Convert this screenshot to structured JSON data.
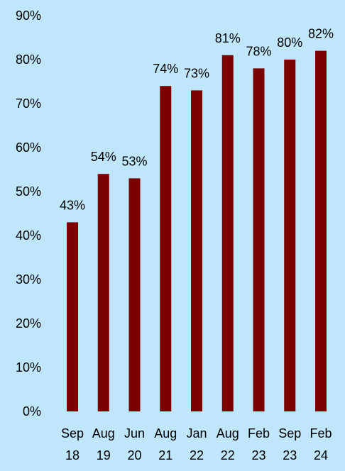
{
  "chart_data": {
    "type": "bar",
    "title": "",
    "xlabel": "",
    "ylabel": "",
    "ylim": [
      0,
      90
    ],
    "y_ticks": [
      0,
      10,
      20,
      30,
      40,
      50,
      60,
      70,
      80,
      90
    ],
    "y_tick_labels": [
      "0%",
      "10%",
      "20%",
      "30%",
      "40%",
      "50%",
      "60%",
      "70%",
      "80%",
      "90%"
    ],
    "grid": false,
    "legend": "none",
    "categories": [
      [
        "Sep",
        "18"
      ],
      [
        "Aug",
        "19"
      ],
      [
        "Jun",
        "20"
      ],
      [
        "Aug",
        "21"
      ],
      [
        "Jan",
        "22"
      ],
      [
        "Aug",
        "22"
      ],
      [
        "Feb",
        "23"
      ],
      [
        "Sep",
        "23"
      ],
      [
        "Feb",
        "24"
      ]
    ],
    "values": [
      43,
      54,
      53,
      74,
      73,
      81,
      78,
      80,
      82
    ],
    "data_labels": [
      "43%",
      "54%",
      "53%",
      "74%",
      "73%",
      "81%",
      "78%",
      "80%",
      "82%"
    ],
    "colors": {
      "bar": "#7b0000",
      "background": "#bfe6fb",
      "text": "#000000"
    }
  }
}
